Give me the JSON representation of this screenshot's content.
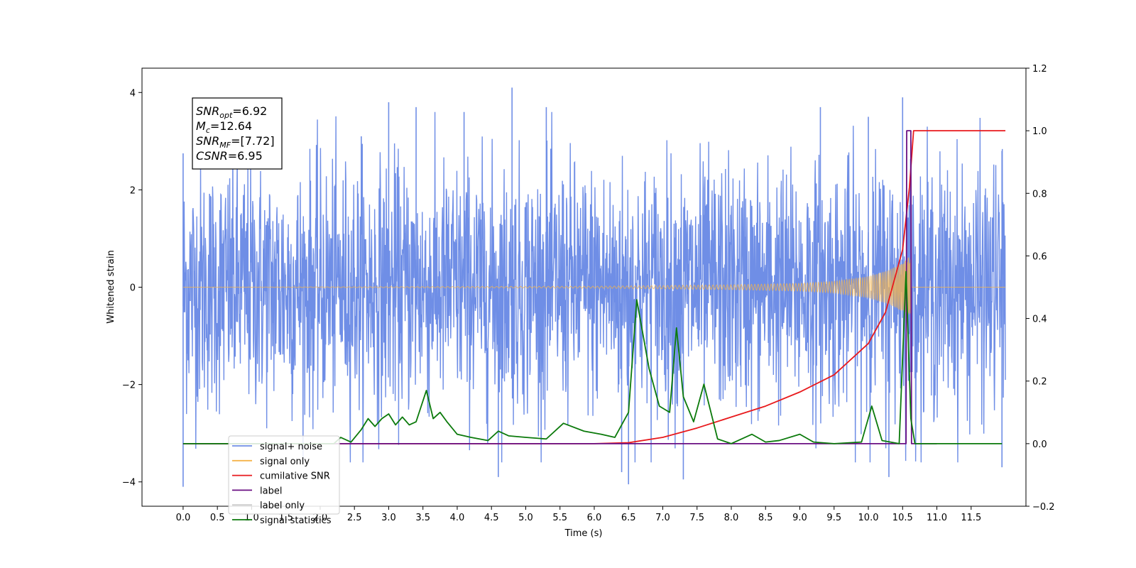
{
  "chart_data": {
    "type": "line",
    "xlabel": "Time (s)",
    "ylabel_left": "Whitened strain",
    "ylabel_right": "",
    "xlim": [
      -0.6,
      12.3
    ],
    "ylim_left": [
      -4.5,
      4.5
    ],
    "ylim_right": [
      -0.2,
      1.2
    ],
    "x_ticks": [
      0.0,
      0.5,
      1.0,
      1.5,
      2.0,
      2.5,
      3.0,
      3.5,
      4.0,
      4.5,
      5.0,
      5.5,
      6.0,
      6.5,
      7.0,
      7.5,
      8.0,
      8.5,
      9.0,
      9.5,
      10.0,
      10.5,
      11.0,
      11.5
    ],
    "x_tick_labels": [
      "0.0",
      "0.5",
      "1.0",
      "1.5",
      "2.0",
      "2.5",
      "3.0",
      "3.5",
      "4.0",
      "4.5",
      "5.0",
      "5.5",
      "6.0",
      "6.5",
      "7.0",
      "7.5",
      "8.0",
      "8.5",
      "9.0",
      "9.5",
      "10.0",
      "10.5",
      "11.0",
      "11.5"
    ],
    "y_left_ticks": [
      -4,
      -2,
      0,
      2,
      4
    ],
    "y_left_tick_labels": [
      "−4",
      "−2",
      "0",
      "2",
      "4"
    ],
    "y_right_ticks": [
      -0.2,
      0.0,
      0.2,
      0.4,
      0.6,
      0.8,
      1.0,
      1.2
    ],
    "y_right_tick_labels": [
      "−0.2",
      "0.0",
      "0.2",
      "0.4",
      "0.6",
      "0.8",
      "1.0",
      "1.2"
    ],
    "grid": false,
    "legend_position": "lower-left",
    "annotation_lines": [
      {
        "italic": "SNR",
        "sub": "opt",
        "rest": "=6.92"
      },
      {
        "italic": "M",
        "sub": "c",
        "rest": "=12.64"
      },
      {
        "italic": "SNR",
        "sub": "MF",
        "rest": "=[7.72]"
      },
      {
        "italic": "CSNR",
        "sub": "",
        "rest": "=6.95"
      }
    ],
    "series": [
      {
        "name": "signal+ noise",
        "color": "#6f8ee6",
        "axis": "left",
        "kind": "noise",
        "x_range": [
          0.0,
          12.0
        ],
        "typical_amplitude": 2.3,
        "peak_values": [
          {
            "x": 0.0,
            "y": 2.75
          },
          {
            "x": 0.0,
            "y": -4.1
          },
          {
            "x": 2.6,
            "y": 3.1
          },
          {
            "x": 3.0,
            "y": 3.8
          },
          {
            "x": 3.4,
            "y": 3.7
          },
          {
            "x": 4.1,
            "y": 3.6
          },
          {
            "x": 4.6,
            "y": -3.9
          },
          {
            "x": 4.8,
            "y": 4.1
          },
          {
            "x": 5.3,
            "y": 3.7
          },
          {
            "x": 6.5,
            "y": -4.05
          },
          {
            "x": 6.4,
            "y": -3.8
          },
          {
            "x": 7.3,
            "y": -3.95
          },
          {
            "x": 9.3,
            "y": 3.7
          },
          {
            "x": 10.0,
            "y": 3.5
          },
          {
            "x": 10.5,
            "y": 3.9
          },
          {
            "x": 10.3,
            "y": -3.9
          },
          {
            "x": 11.95,
            "y": -3.7
          },
          {
            "x": 11.95,
            "y": 2.8
          }
        ]
      },
      {
        "name": "signal only",
        "color": "#f5b44a",
        "axis": "left",
        "kind": "chirp",
        "x_range": [
          0.0,
          12.0
        ],
        "merger_time": 10.62,
        "envelope": [
          {
            "x": 0.0,
            "y": 0.0
          },
          {
            "x": 6.0,
            "y": 0.02
          },
          {
            "x": 8.0,
            "y": 0.05
          },
          {
            "x": 9.0,
            "y": 0.08
          },
          {
            "x": 9.5,
            "y": 0.12
          },
          {
            "x": 10.0,
            "y": 0.22
          },
          {
            "x": 10.3,
            "y": 0.35
          },
          {
            "x": 10.5,
            "y": 0.5
          },
          {
            "x": 10.62,
            "y": 0.65
          },
          {
            "x": 10.66,
            "y": 0.0
          },
          {
            "x": 12.0,
            "y": 0.0
          }
        ]
      },
      {
        "name": "cumilative SNR",
        "color": "#e8191c",
        "axis": "right",
        "kind": "line",
        "points": [
          {
            "x": 0.0,
            "y": 0.0
          },
          {
            "x": 6.0,
            "y": 0.0
          },
          {
            "x": 6.5,
            "y": 0.003
          },
          {
            "x": 7.0,
            "y": 0.02
          },
          {
            "x": 7.5,
            "y": 0.05
          },
          {
            "x": 8.0,
            "y": 0.085
          },
          {
            "x": 8.5,
            "y": 0.12
          },
          {
            "x": 9.0,
            "y": 0.165
          },
          {
            "x": 9.5,
            "y": 0.22
          },
          {
            "x": 10.0,
            "y": 0.32
          },
          {
            "x": 10.25,
            "y": 0.42
          },
          {
            "x": 10.5,
            "y": 0.62
          },
          {
            "x": 10.6,
            "y": 0.82
          },
          {
            "x": 10.66,
            "y": 1.0
          },
          {
            "x": 12.0,
            "y": 1.0
          }
        ]
      },
      {
        "name": "label",
        "color": "#6a0f82",
        "axis": "right",
        "kind": "line",
        "points": [
          {
            "x": 0.0,
            "y": 0.0
          },
          {
            "x": 10.55,
            "y": 0.0
          },
          {
            "x": 10.56,
            "y": 1.0
          },
          {
            "x": 10.62,
            "y": 1.0
          },
          {
            "x": 10.63,
            "y": 0.0
          },
          {
            "x": 11.0,
            "y": 0.0
          }
        ]
      },
      {
        "name": "signal statistics",
        "color": "#0b7a0b",
        "axis": "right",
        "kind": "line",
        "points": [
          {
            "x": 0.0,
            "y": 0.0
          },
          {
            "x": 2.2,
            "y": 0.0
          },
          {
            "x": 2.3,
            "y": 0.02
          },
          {
            "x": 2.45,
            "y": 0.005
          },
          {
            "x": 2.6,
            "y": 0.045
          },
          {
            "x": 2.7,
            "y": 0.08
          },
          {
            "x": 2.8,
            "y": 0.055
          },
          {
            "x": 2.9,
            "y": 0.08
          },
          {
            "x": 3.0,
            "y": 0.095
          },
          {
            "x": 3.1,
            "y": 0.06
          },
          {
            "x": 3.2,
            "y": 0.085
          },
          {
            "x": 3.3,
            "y": 0.06
          },
          {
            "x": 3.4,
            "y": 0.07
          },
          {
            "x": 3.55,
            "y": 0.17
          },
          {
            "x": 3.65,
            "y": 0.08
          },
          {
            "x": 3.75,
            "y": 0.1
          },
          {
            "x": 3.85,
            "y": 0.07
          },
          {
            "x": 4.0,
            "y": 0.03
          },
          {
            "x": 4.2,
            "y": 0.02
          },
          {
            "x": 4.45,
            "y": 0.01
          },
          {
            "x": 4.6,
            "y": 0.04
          },
          {
            "x": 4.75,
            "y": 0.025
          },
          {
            "x": 5.0,
            "y": 0.02
          },
          {
            "x": 5.3,
            "y": 0.015
          },
          {
            "x": 5.55,
            "y": 0.065
          },
          {
            "x": 5.85,
            "y": 0.04
          },
          {
            "x": 6.1,
            "y": 0.03
          },
          {
            "x": 6.3,
            "y": 0.02
          },
          {
            "x": 6.5,
            "y": 0.1
          },
          {
            "x": 6.62,
            "y": 0.46
          },
          {
            "x": 6.8,
            "y": 0.24
          },
          {
            "x": 6.95,
            "y": 0.12
          },
          {
            "x": 7.1,
            "y": 0.1
          },
          {
            "x": 7.2,
            "y": 0.37
          },
          {
            "x": 7.3,
            "y": 0.15
          },
          {
            "x": 7.45,
            "y": 0.07
          },
          {
            "x": 7.6,
            "y": 0.19
          },
          {
            "x": 7.8,
            "y": 0.015
          },
          {
            "x": 8.0,
            "y": 0.0
          },
          {
            "x": 8.3,
            "y": 0.03
          },
          {
            "x": 8.5,
            "y": 0.005
          },
          {
            "x": 8.7,
            "y": 0.01
          },
          {
            "x": 9.0,
            "y": 0.03
          },
          {
            "x": 9.2,
            "y": 0.005
          },
          {
            "x": 9.5,
            "y": 0.0
          },
          {
            "x": 9.9,
            "y": 0.005
          },
          {
            "x": 10.05,
            "y": 0.12
          },
          {
            "x": 10.2,
            "y": 0.01
          },
          {
            "x": 10.45,
            "y": 0.0
          },
          {
            "x": 10.55,
            "y": 0.55
          },
          {
            "x": 10.62,
            "y": 0.08
          },
          {
            "x": 10.68,
            "y": 0.0
          },
          {
            "x": 11.0,
            "y": 0.0
          },
          {
            "x": 11.95,
            "y": 0.0
          }
        ]
      }
    ],
    "legend_hidden_entry": {
      "name": "label only",
      "color": "#cccccc"
    }
  }
}
